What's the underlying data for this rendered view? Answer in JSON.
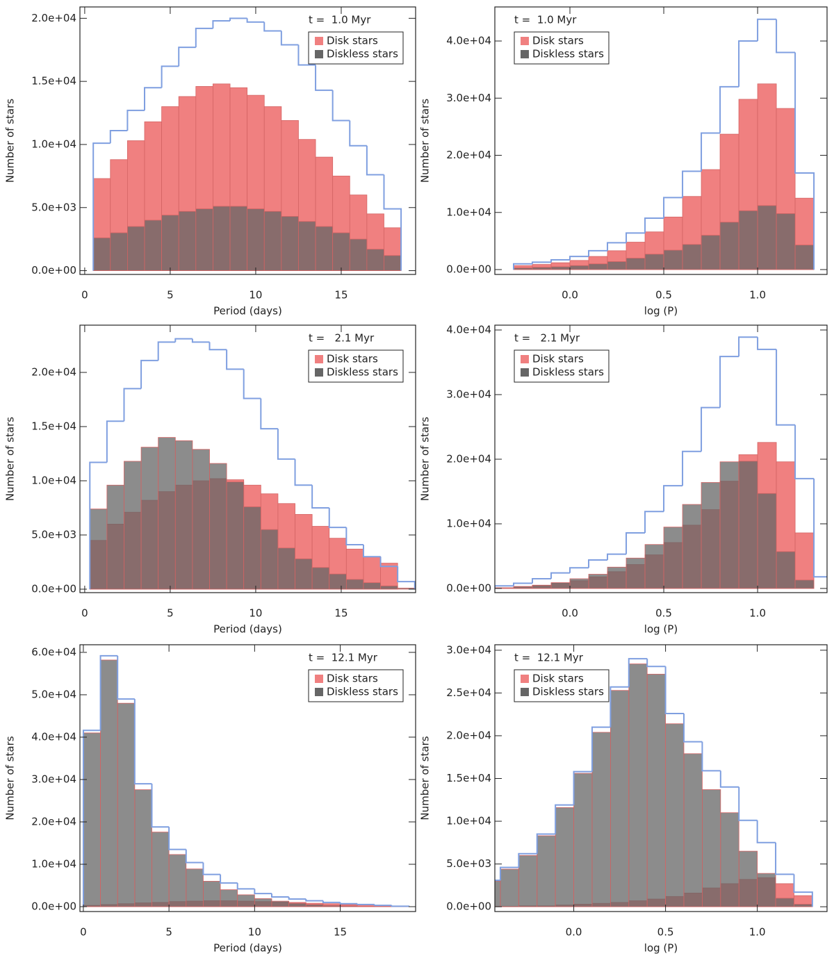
{
  "chart_data": [
    {
      "type": "histogram",
      "annotation": "t =  1.0 Myr",
      "xlabel": "Period (days)",
      "ylabel": "Number of stars",
      "legend": "upper right",
      "bins": [
        0.5,
        1.5,
        2.5,
        3.5,
        4.5,
        5.5,
        6.5,
        7.5,
        8.5,
        9.5,
        10.5,
        11.5,
        12.5,
        13.5,
        14.5,
        15.5,
        16.5,
        17.5,
        18.5
      ],
      "series": [
        {
          "style": "step",
          "color": "#7f9fe0",
          "values": [
            10100,
            11100,
            12700,
            14500,
            16200,
            17700,
            19200,
            19800,
            20000,
            19700,
            19000,
            17900,
            16300,
            14300,
            11900,
            9900,
            7600,
            4900
          ]
        },
        {
          "name": "Disk stars",
          "color": "#f08080",
          "values": [
            7300,
            8800,
            10300,
            11800,
            13000,
            13800,
            14600,
            14800,
            14500,
            13900,
            13000,
            11900,
            10400,
            9000,
            7500,
            6000,
            4500,
            3400
          ]
        },
        {
          "name": "Diskless stars",
          "color": "#666666",
          "values": [
            2600,
            3000,
            3500,
            4000,
            4400,
            4700,
            4900,
            5100,
            5100,
            4900,
            4700,
            4300,
            3900,
            3500,
            3000,
            2500,
            1700,
            1200
          ]
        }
      ],
      "xlim": [
        -0.28,
        19.35
      ],
      "xticks": [
        0,
        5,
        10,
        15
      ],
      "ylim": [
        -300,
        20900
      ],
      "yticks": [
        {
          "value": 0,
          "label": "0.0e+00"
        },
        {
          "value": 5000,
          "label": "5.0e+03"
        },
        {
          "value": 10000,
          "label": "1.0e+04"
        },
        {
          "value": 15000,
          "label": "1.5e+04"
        },
        {
          "value": 20000,
          "label": "2.0e+04"
        }
      ]
    },
    {
      "type": "histogram",
      "annotation": "t =  1.0 Myr",
      "xlabel": "log (P)",
      "ylabel": "Number of stars",
      "legend": "upper left",
      "bins": [
        -0.3,
        -0.2,
        -0.1,
        0.0,
        0.1,
        0.2,
        0.3,
        0.4,
        0.5,
        0.6,
        0.7,
        0.8,
        0.9,
        1.0,
        1.1,
        1.2,
        1.3
      ],
      "series": [
        {
          "style": "step",
          "color": "#7f9fe0",
          "values": [
            1000,
            1300,
            1700,
            2300,
            3300,
            4700,
            6400,
            9000,
            12600,
            17200,
            23900,
            32000,
            40000,
            43800,
            38000,
            16900
          ]
        },
        {
          "name": "Disk stars",
          "color": "#f08080",
          "values": [
            700,
            900,
            1200,
            1600,
            2300,
            3300,
            4800,
            6600,
            9200,
            12800,
            17500,
            23700,
            29800,
            32500,
            28200,
            12500
          ]
        },
        {
          "name": "Diskless stars",
          "color": "#666666",
          "values": [
            300,
            400,
            500,
            700,
            1000,
            1400,
            2000,
            2700,
            3400,
            4400,
            6000,
            8300,
            10300,
            11200,
            9800,
            4300
          ]
        }
      ],
      "xlim": [
        -0.4,
        1.37
      ],
      "xticks": [
        {
          "value": 0,
          "label": "0.0"
        },
        0.5,
        {
          "value": 1,
          "label": "1.0"
        }
      ],
      "ylim": [
        -850,
        45960
      ],
      "yticks": [
        {
          "value": 0,
          "label": "0.0e+00"
        },
        {
          "value": 10000,
          "label": "1.0e+04"
        },
        {
          "value": 20000,
          "label": "2.0e+04"
        },
        {
          "value": 30000,
          "label": "3.0e+04"
        },
        {
          "value": 40000,
          "label": "4.0e+04"
        }
      ]
    },
    {
      "type": "histogram",
      "annotation": "t =   2.1 Myr",
      "xlabel": "Period (days)",
      "ylabel": "Number of stars",
      "legend": "upper right",
      "bins": [
        0.3,
        1.3,
        2.3,
        3.3,
        4.3,
        5.3,
        6.3,
        7.3,
        8.3,
        9.3,
        10.3,
        11.3,
        12.3,
        13.3,
        14.3,
        15.3,
        16.3,
        17.3,
        18.3,
        19.3
      ],
      "series": [
        {
          "style": "step",
          "color": "#7f9fe0",
          "values": [
            11700,
            15500,
            18500,
            21100,
            22800,
            23100,
            22800,
            22100,
            20300,
            17600,
            14800,
            12000,
            9600,
            7500,
            5700,
            4100,
            3000,
            2100,
            700
          ]
        },
        {
          "name": "Disk stars",
          "color": "#f08080",
          "values": [
            4500,
            6000,
            7100,
            8200,
            9000,
            9600,
            10000,
            10200,
            10100,
            9600,
            8800,
            7900,
            6900,
            5800,
            4700,
            3700,
            3000,
            2400,
            0
          ]
        },
        {
          "name": "Diskless stars",
          "color": "#666666",
          "values": [
            7400,
            9600,
            11800,
            13100,
            14000,
            13700,
            12900,
            11600,
            9900,
            7600,
            5500,
            3800,
            2800,
            2000,
            1400,
            900,
            600,
            300,
            100
          ]
        }
      ],
      "xlim": [
        -0.28,
        19.35
      ],
      "xticks": [
        0,
        5,
        10,
        15
      ],
      "ylim": [
        -320,
        24360
      ],
      "yticks": [
        {
          "value": 0,
          "label": "0.0e+00"
        },
        {
          "value": 5000,
          "label": "5.0e+03"
        },
        {
          "value": 10000,
          "label": "1.0e+04"
        },
        {
          "value": 15000,
          "label": "1.5e+04"
        },
        {
          "value": 20000,
          "label": "2.0e+04"
        }
      ]
    },
    {
      "type": "histogram",
      "annotation": "t =   2.1 Myr",
      "xlabel": "log (P)",
      "ylabel": "Number of stars",
      "legend": "upper left",
      "bins": [
        -0.4,
        -0.3,
        -0.2,
        -0.1,
        0.0,
        0.1,
        0.2,
        0.3,
        0.4,
        0.5,
        0.6,
        0.7,
        0.8,
        0.9,
        1.0,
        1.1,
        1.2,
        1.3,
        1.4
      ],
      "series": [
        {
          "style": "step",
          "color": "#7f9fe0",
          "values": [
            400,
            800,
            1500,
            2400,
            3200,
            4400,
            5300,
            8600,
            11900,
            15900,
            21200,
            28000,
            35900,
            38900,
            37000,
            25300,
            17000,
            1800
          ]
        },
        {
          "name": "Disk stars",
          "color": "#f08080",
          "values": [
            100,
            300,
            500,
            800,
            1200,
            1800,
            2600,
            3700,
            5200,
            7100,
            9800,
            12200,
            16600,
            20700,
            22600,
            19600,
            8600,
            0
          ]
        },
        {
          "name": "Diskless stars",
          "color": "#666666",
          "values": [
            100,
            300,
            500,
            900,
            1500,
            2200,
            3300,
            4700,
            6800,
            9500,
            13000,
            16400,
            19600,
            19700,
            14700,
            5700,
            1300,
            0
          ]
        }
      ],
      "xlim": [
        -0.4,
        1.37
      ],
      "xticks": [
        {
          "value": 0,
          "label": "0.0"
        },
        0.5,
        {
          "value": 1,
          "label": "1.0"
        }
      ],
      "ylim": [
        -650,
        40750
      ],
      "yticks": [
        {
          "value": 0,
          "label": "0.0e+00"
        },
        {
          "value": 10000,
          "label": "1.0e+04"
        },
        {
          "value": 20000,
          "label": "2.0e+04"
        },
        {
          "value": 30000,
          "label": "3.0e+04"
        },
        {
          "value": 40000,
          "label": "4.0e+04"
        }
      ]
    },
    {
      "type": "histogram",
      "annotation": "t =  12.1 Myr",
      "xlabel": "Period (days)",
      "ylabel": "Number of stars",
      "legend": "upper right",
      "bins": [
        0,
        1,
        2,
        3,
        4,
        5,
        6,
        7,
        8,
        9,
        10,
        11,
        12,
        13,
        14,
        15,
        16,
        17,
        18,
        19
      ],
      "series": [
        {
          "style": "step",
          "color": "#7f9fe0",
          "values": [
            41600,
            59200,
            49000,
            29000,
            18800,
            13500,
            10400,
            7600,
            5600,
            4200,
            3100,
            2300,
            1800,
            1400,
            1000,
            700,
            500,
            300,
            100
          ]
        },
        {
          "name": "Disk stars",
          "color": "#f08080",
          "values": [
            300,
            500,
            700,
            900,
            1000,
            1200,
            1300,
            1400,
            1400,
            1300,
            1200,
            1100,
            1000,
            800,
            700,
            500,
            400,
            200,
            100
          ]
        },
        {
          "name": "Diskless stars",
          "color": "#666666",
          "values": [
            41000,
            58200,
            48000,
            27600,
            17600,
            12300,
            8900,
            6000,
            4000,
            2800,
            1900,
            1300,
            800,
            500,
            300,
            200,
            100,
            50,
            0
          ]
        }
      ],
      "xlim": [
        -0.2,
        19.4
      ],
      "xticks": [
        0,
        5,
        10,
        15
      ],
      "ylim": [
        -1150,
        61800
      ],
      "yticks": [
        {
          "value": 0,
          "label": "0.0e+00"
        },
        {
          "value": 10000,
          "label": "1.0e+04"
        },
        {
          "value": 20000,
          "label": "2.0e+04"
        },
        {
          "value": 30000,
          "label": "3.0e+04"
        },
        {
          "value": 40000,
          "label": "4.0e+04"
        },
        {
          "value": 50000,
          "label": "5.0e+04"
        },
        {
          "value": 60000,
          "label": "6.0e+04"
        }
      ]
    },
    {
      "type": "histogram",
      "annotation": "t =  12.1 Myr",
      "xlabel": "log (P)",
      "ylabel": "Number of stars",
      "legend": "upper left",
      "bins": [
        -0.5,
        -0.4,
        -0.3,
        -0.2,
        -0.1,
        0.0,
        0.1,
        0.2,
        0.3,
        0.4,
        0.5,
        0.6,
        0.7,
        0.8,
        0.9,
        1.0,
        1.1,
        1.2,
        1.3
      ],
      "series": [
        {
          "style": "step",
          "color": "#7f9fe0",
          "values": [
            3100,
            4600,
            6200,
            8500,
            11900,
            15800,
            21000,
            25700,
            29000,
            28100,
            22600,
            19300,
            15900,
            14000,
            10100,
            7500,
            3800,
            1700
          ]
        },
        {
          "name": "Disk stars",
          "color": "#f08080",
          "values": [
            50,
            50,
            100,
            100,
            200,
            300,
            400,
            500,
            700,
            900,
            1200,
            1600,
            2200,
            2700,
            3200,
            3400,
            2700,
            1300
          ]
        },
        {
          "name": "Diskless stars",
          "color": "#666666",
          "values": [
            3000,
            4400,
            6000,
            8300,
            11600,
            15600,
            20400,
            25300,
            28400,
            27200,
            21400,
            17900,
            13700,
            11000,
            6500,
            3900,
            1000,
            300
          ]
        }
      ],
      "xlim": [
        -0.43,
        1.38
      ],
      "xticks": [
        {
          "value": 0,
          "label": "0.0"
        },
        0.5,
        {
          "value": 1,
          "label": "1.0"
        }
      ],
      "ylim": [
        -560,
        30640
      ],
      "yticks": [
        {
          "value": 0,
          "label": "0.0e+00"
        },
        {
          "value": 5000,
          "label": "5.0e+03"
        },
        {
          "value": 10000,
          "label": "1.0e+04"
        },
        {
          "value": 15000,
          "label": "1.5e+04"
        },
        {
          "value": 20000,
          "label": "2.0e+04"
        },
        {
          "value": 25000,
          "label": "2.5e+04"
        },
        {
          "value": 30000,
          "label": "3.0e+04"
        }
      ]
    }
  ]
}
